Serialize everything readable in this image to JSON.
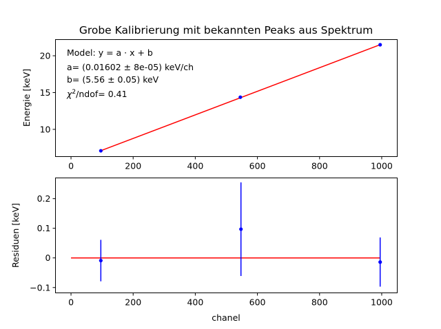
{
  "chart_data": [
    {
      "type": "line",
      "title": "Grobe Kalibrierung mit bekannten Peaks aus Spektrum",
      "xlabel": "",
      "ylabel": "Energie [keV]",
      "xlim": [
        -50,
        1050
      ],
      "ylim": [
        6.3,
        22.2
      ],
      "xticks": [
        0,
        200,
        400,
        600,
        800,
        1000
      ],
      "yticks": [
        10,
        15,
        20
      ],
      "grid": false,
      "annotations": [
        "Model: y = a · x + b",
        "a= (0.01602 ± 8e-05) keV/ch",
        "b= (5.56 ± 0.05) keV",
        "/ndof= 0.41"
      ],
      "annotation_chi_symbol": "χ",
      "annotation_chi_sup": "2",
      "series": [
        {
          "kind": "points",
          "color": "#0000ff",
          "x": [
            96,
            545,
            995
          ],
          "y": [
            7.09,
            14.37,
            21.5
          ],
          "xerr": [
            0,
            5,
            0
          ]
        },
        {
          "kind": "fit",
          "color": "#ff0000",
          "x": [
            96,
            995
          ],
          "y": [
            7.1,
            21.5
          ]
        }
      ]
    },
    {
      "type": "scatter",
      "title": "",
      "xlabel": "chanel",
      "ylabel": "Residuen [keV]",
      "xlim": [
        -50,
        1050
      ],
      "ylim": [
        -0.118,
        0.27
      ],
      "xticks": [
        0,
        200,
        400,
        600,
        800,
        1000
      ],
      "yticks": [
        -0.1,
        0.0,
        0.1,
        0.2
      ],
      "grid": false,
      "series": [
        {
          "kind": "points",
          "color": "#0000ff",
          "x": [
            96,
            547,
            995
          ],
          "y": [
            -0.009,
            0.097,
            -0.014
          ],
          "yerr": [
            0.07,
            0.158,
            0.083
          ]
        },
        {
          "kind": "fit",
          "color": "#ff0000",
          "x": [
            0,
            995
          ],
          "y": [
            0.0,
            0.0
          ]
        }
      ]
    }
  ]
}
